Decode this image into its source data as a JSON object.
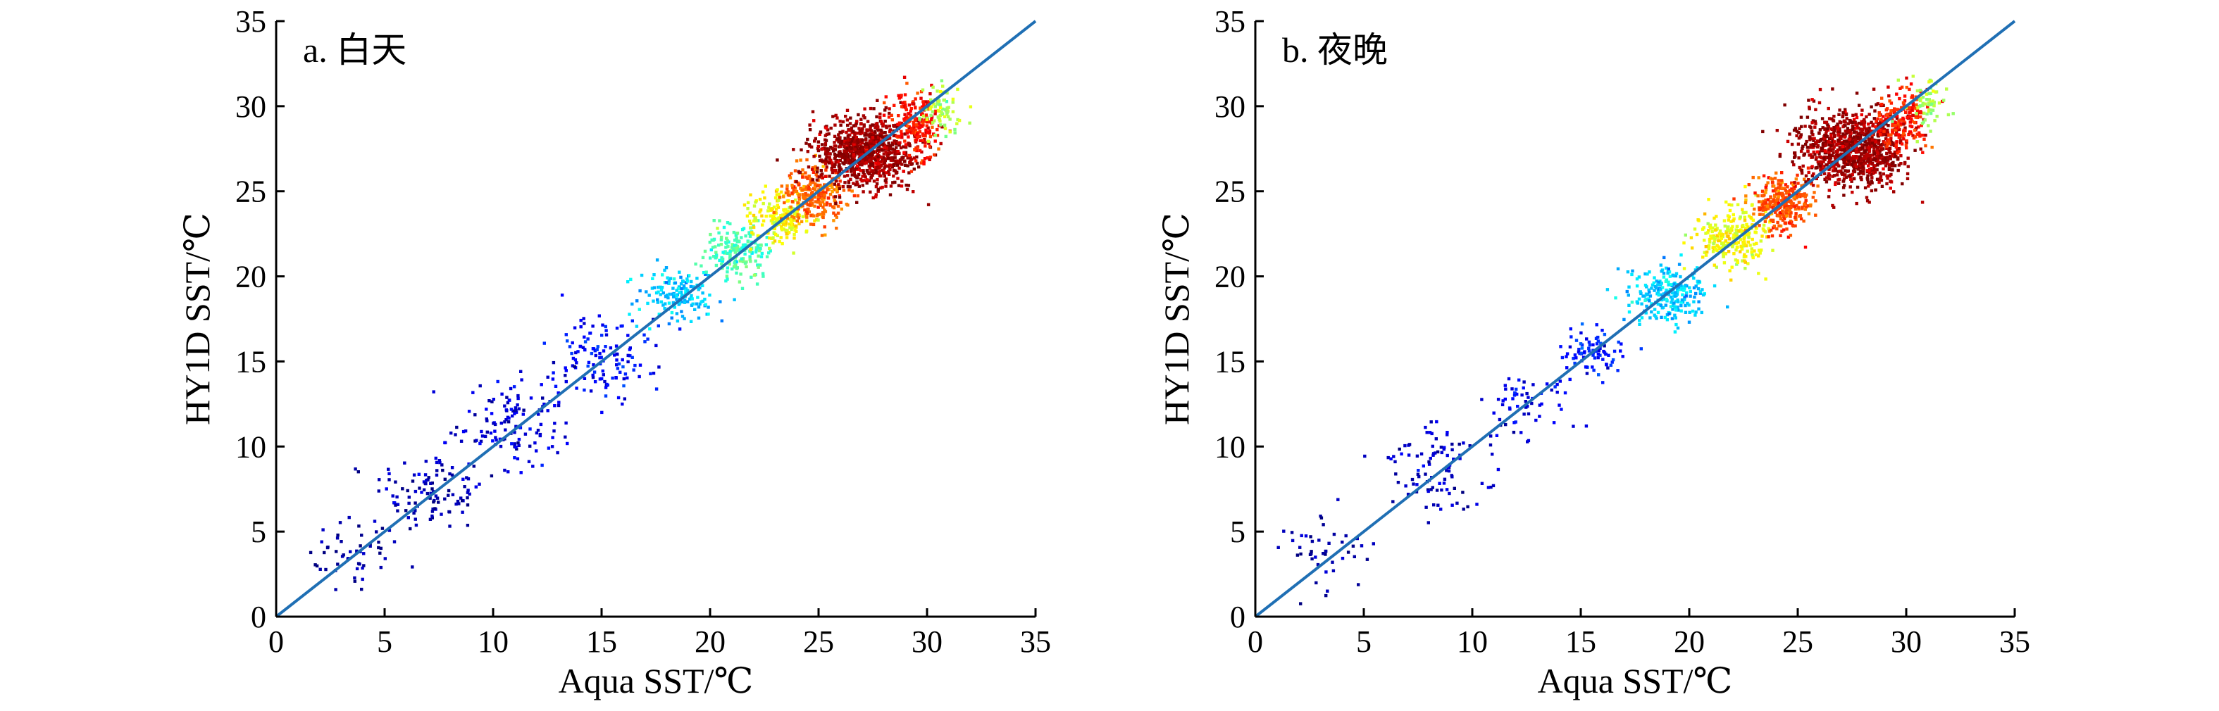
{
  "chart_data": [
    {
      "type": "scatter",
      "panel_label": "a. 白天",
      "xlabel": "Aqua SST/℃",
      "ylabel": "HY1D SST/℃",
      "xlim": [
        0,
        35
      ],
      "ylim": [
        0,
        35
      ],
      "xticks": [
        "0",
        "5",
        "10",
        "15",
        "20",
        "25",
        "30",
        "35"
      ],
      "yticks": [
        "0",
        "5",
        "10",
        "15",
        "20",
        "25",
        "30",
        "35"
      ],
      "grid": false,
      "reference_line": {
        "x": [
          0,
          35
        ],
        "y": [
          0,
          35
        ]
      },
      "colormap": "jet (blue = low density/value, red = high)",
      "clusters": [
        {
          "x": 3.5,
          "y": 3.8,
          "sx": 1.0,
          "sy": 1.2,
          "n": 50,
          "c": 0.03
        },
        {
          "x": 7.0,
          "y": 7.2,
          "sx": 1.3,
          "sy": 1.3,
          "n": 110,
          "c": 0.05
        },
        {
          "x": 11.0,
          "y": 11.3,
          "sx": 1.3,
          "sy": 1.3,
          "n": 130,
          "c": 0.08
        },
        {
          "x": 15.0,
          "y": 15.3,
          "sx": 1.2,
          "sy": 1.2,
          "n": 130,
          "c": 0.13
        },
        {
          "x": 18.5,
          "y": 18.8,
          "sx": 0.9,
          "sy": 0.9,
          "n": 150,
          "c": 0.32
        },
        {
          "x": 21.3,
          "y": 21.5,
          "sx": 0.8,
          "sy": 0.8,
          "n": 180,
          "c": 0.45
        },
        {
          "x": 23.3,
          "y": 23.5,
          "sx": 0.7,
          "sy": 0.8,
          "n": 200,
          "c": 0.62
        },
        {
          "x": 24.8,
          "y": 24.8,
          "sx": 0.7,
          "sy": 0.8,
          "n": 250,
          "c": 0.78
        },
        {
          "x": 27.2,
          "y": 27.3,
          "sx": 1.2,
          "sy": 1.0,
          "n": 900,
          "c": 0.97
        },
        {
          "x": 29.5,
          "y": 29.0,
          "sx": 0.6,
          "sy": 0.9,
          "n": 200,
          "c": 0.86
        },
        {
          "x": 30.7,
          "y": 29.8,
          "sx": 0.5,
          "sy": 0.7,
          "n": 80,
          "c": 0.55
        }
      ]
    },
    {
      "type": "scatter",
      "panel_label": "b. 夜晚",
      "xlabel": "Aqua SST/℃",
      "ylabel": "HY1D SST/℃",
      "xlim": [
        0,
        35
      ],
      "ylim": [
        0,
        35
      ],
      "xticks": [
        "0",
        "5",
        "10",
        "15",
        "20",
        "25",
        "30",
        "35"
      ],
      "yticks": [
        "0",
        "5",
        "10",
        "15",
        "20",
        "25",
        "30",
        "35"
      ],
      "grid": false,
      "reference_line": {
        "x": [
          0,
          35
        ],
        "y": [
          0,
          35
        ]
      },
      "colormap": "jet (blue = low density/value, red = high)",
      "clusters": [
        {
          "x": 3.5,
          "y": 3.8,
          "sx": 1.0,
          "sy": 1.1,
          "n": 45,
          "c": 0.03
        },
        {
          "x": 8.5,
          "y": 8.8,
          "sx": 1.3,
          "sy": 1.3,
          "n": 100,
          "c": 0.06
        },
        {
          "x": 12.5,
          "y": 12.6,
          "sx": 1.0,
          "sy": 1.0,
          "n": 60,
          "c": 0.1
        },
        {
          "x": 15.5,
          "y": 15.5,
          "sx": 0.7,
          "sy": 0.7,
          "n": 80,
          "c": 0.14
        },
        {
          "x": 19.0,
          "y": 19.0,
          "sx": 0.9,
          "sy": 0.9,
          "n": 230,
          "c": 0.33
        },
        {
          "x": 22.0,
          "y": 22.3,
          "sx": 0.8,
          "sy": 0.9,
          "n": 250,
          "c": 0.62
        },
        {
          "x": 24.3,
          "y": 24.3,
          "sx": 0.7,
          "sy": 0.8,
          "n": 300,
          "c": 0.8
        },
        {
          "x": 27.5,
          "y": 27.5,
          "sx": 1.2,
          "sy": 1.1,
          "n": 1000,
          "c": 0.97
        },
        {
          "x": 29.8,
          "y": 29.3,
          "sx": 0.6,
          "sy": 0.9,
          "n": 180,
          "c": 0.85
        },
        {
          "x": 31.0,
          "y": 30.2,
          "sx": 0.5,
          "sy": 0.7,
          "n": 60,
          "c": 0.55
        }
      ]
    }
  ]
}
